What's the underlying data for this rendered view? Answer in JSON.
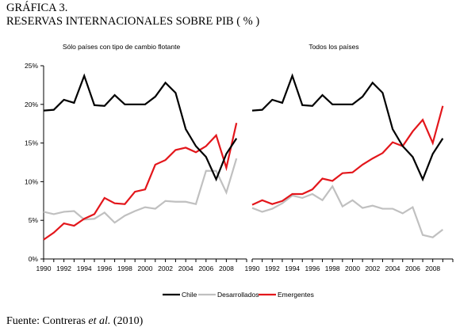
{
  "header": {
    "label": "GRÁFICA 3.",
    "title": "RESERVAS INTERNACIONALES SOBRE PIB ( % )"
  },
  "source": {
    "prefix": "Fuente: Contreras ",
    "italic": "et al.",
    "suffix": " (2010)"
  },
  "colors": {
    "chile": "#000000",
    "desarrollados": "#c0c0c0",
    "emergentes": "#e3161b"
  },
  "chart_data": [
    {
      "type": "line",
      "title": "Sólo países con tipo de cambio flotante",
      "x": [
        1990,
        1991,
        1992,
        1993,
        1994,
        1995,
        1996,
        1997,
        1998,
        1999,
        2000,
        2001,
        2002,
        2003,
        2004,
        2005,
        2006,
        2007,
        2008,
        2009
      ],
      "x_tick_labels": [
        "1990",
        "1992",
        "1994",
        "1996",
        "1998",
        "2000",
        "2002",
        "2004",
        "2006",
        "2008"
      ],
      "y_tick_labels": [
        "0%",
        "5%",
        "10%",
        "15%",
        "20%",
        "25%"
      ],
      "ylim": [
        0,
        25
      ],
      "grid": false,
      "series": [
        {
          "name": "Chile",
          "values": [
            19.2,
            19.3,
            20.6,
            20.2,
            23.7,
            19.9,
            19.8,
            21.2,
            20.0,
            20.0,
            20.0,
            21.0,
            22.8,
            21.5,
            16.8,
            14.6,
            13.2,
            10.3,
            13.6,
            15.6
          ]
        },
        {
          "name": "Desarrollados",
          "values": [
            6.1,
            5.8,
            6.1,
            6.2,
            5.1,
            5.2,
            6.0,
            4.7,
            5.6,
            6.2,
            6.7,
            6.5,
            7.5,
            7.4,
            7.4,
            7.1,
            11.4,
            11.4,
            8.6,
            13.0
          ]
        },
        {
          "name": "Emergentes",
          "values": [
            2.5,
            3.4,
            4.6,
            4.3,
            5.2,
            5.8,
            7.9,
            7.2,
            7.1,
            8.7,
            9.0,
            12.2,
            12.8,
            14.1,
            14.4,
            13.8,
            14.6,
            16.0,
            11.8,
            17.6
          ]
        }
      ]
    },
    {
      "type": "line",
      "title": "Todos los países",
      "x": [
        1990,
        1991,
        1992,
        1993,
        1994,
        1995,
        1996,
        1997,
        1998,
        1999,
        2000,
        2001,
        2002,
        2003,
        2004,
        2005,
        2006,
        2007,
        2008,
        2009
      ],
      "x_tick_labels": [
        "1990",
        "1992",
        "1994",
        "1996",
        "1998",
        "2000",
        "2002",
        "2004",
        "2006",
        "2008"
      ],
      "ylim": [
        0,
        25
      ],
      "grid": false,
      "series": [
        {
          "name": "Chile",
          "values": [
            19.2,
            19.3,
            20.6,
            20.2,
            23.7,
            19.9,
            19.8,
            21.2,
            20.0,
            20.0,
            20.0,
            21.0,
            22.8,
            21.5,
            16.8,
            14.6,
            13.2,
            10.3,
            13.6,
            15.6
          ]
        },
        {
          "name": "Desarrollados",
          "values": [
            6.6,
            6.1,
            6.5,
            7.2,
            8.2,
            7.9,
            8.4,
            7.6,
            9.4,
            6.8,
            7.6,
            6.6,
            6.9,
            6.5,
            6.5,
            5.9,
            6.7,
            3.1,
            2.8,
            3.8
          ]
        },
        {
          "name": "Emergentes",
          "values": [
            7.0,
            7.6,
            7.1,
            7.5,
            8.4,
            8.4,
            9.0,
            10.4,
            10.1,
            11.1,
            11.2,
            12.2,
            13.0,
            13.7,
            15.1,
            14.6,
            16.5,
            18.0,
            15.0,
            19.8
          ]
        }
      ]
    }
  ],
  "legend": {
    "placement": "bottom-center",
    "items": [
      "Chile",
      "Desarrollados",
      "Emergentes"
    ]
  }
}
